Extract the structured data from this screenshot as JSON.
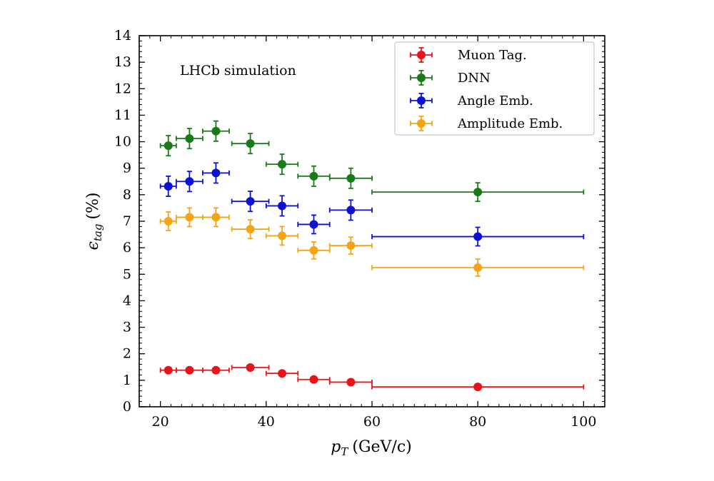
{
  "chart_data": {
    "type": "scatter",
    "title": "",
    "annotation": "LHCb simulation",
    "xlabel": {
      "symbol": "p",
      "subscript": "T",
      "unit": "(GeV/c)"
    },
    "ylabel": {
      "symbol": "ϵ",
      "subscript": "tag",
      "unit": "(%)"
    },
    "xlim": [
      16,
      104
    ],
    "ylim": [
      0,
      14
    ],
    "xticks": [
      20,
      40,
      60,
      80,
      100
    ],
    "yticks": [
      0,
      1,
      2,
      3,
      4,
      5,
      6,
      7,
      8,
      9,
      10,
      11,
      12,
      13,
      14
    ],
    "legend_position": "top-right",
    "x": [
      21.5,
      25.5,
      30.5,
      37,
      43,
      49,
      56,
      80
    ],
    "x_err": [
      1.5,
      2.5,
      2.5,
      3.5,
      3,
      3,
      4,
      20
    ],
    "series": [
      {
        "name": "Muon Tag.",
        "color": "#e8141a",
        "values": [
          1.38,
          1.38,
          1.38,
          1.48,
          1.26,
          1.03,
          0.93,
          0.75
        ],
        "y_err": [
          0.1,
          0.1,
          0.1,
          0.1,
          0.1,
          0.08,
          0.06,
          0.05
        ]
      },
      {
        "name": "DNN",
        "color": "#1a7a1a",
        "values": [
          9.85,
          10.12,
          10.4,
          9.93,
          9.15,
          8.7,
          8.62,
          8.1
        ],
        "y_err": [
          0.38,
          0.38,
          0.38,
          0.38,
          0.38,
          0.38,
          0.38,
          0.35
        ]
      },
      {
        "name": "Angle Emb.",
        "color": "#0c12d4",
        "values": [
          8.32,
          8.5,
          8.82,
          7.75,
          7.58,
          6.88,
          7.42,
          6.42
        ],
        "y_err": [
          0.38,
          0.38,
          0.38,
          0.38,
          0.38,
          0.35,
          0.38,
          0.35
        ]
      },
      {
        "name": "Amplitude Emb.",
        "color": "#f4a415",
        "values": [
          7.0,
          7.15,
          7.15,
          6.7,
          6.45,
          5.9,
          6.08,
          5.25
        ],
        "y_err": [
          0.35,
          0.35,
          0.35,
          0.35,
          0.35,
          0.32,
          0.32,
          0.32
        ]
      }
    ]
  }
}
